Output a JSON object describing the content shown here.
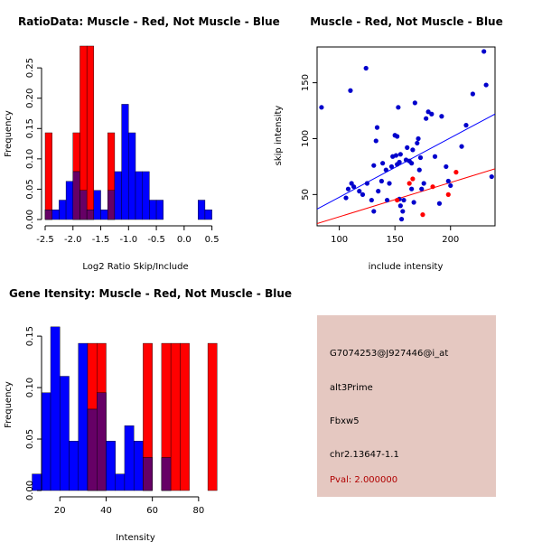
{
  "colors": {
    "red": "#ff0000",
    "blue": "#0000ff",
    "overlap": "#660066",
    "red_point": "#ff0000",
    "blue_point": "#0000cc",
    "info_bg": "#e5c8c1",
    "pval": "#b00000"
  },
  "chart_data": [
    {
      "id": "ratio-hist",
      "type": "bar",
      "title": "RatioData: Muscle - Red, Not Muscle - Blue",
      "xlabel": "Log2 Ratio Skip/Include",
      "ylabel": "Frequency",
      "xlim": [
        -2.5,
        0.75
      ],
      "ylim": [
        0,
        0.28
      ],
      "xticks": [
        "-2.5",
        "-2.0",
        "-1.5",
        "-1.0",
        "-0.5",
        "0.0",
        "0.5"
      ],
      "xtick_values": [
        -2.5,
        -2.0,
        -1.5,
        -1.0,
        -0.5,
        0.0,
        0.5
      ],
      "yticks": [
        "0.00",
        "0.05",
        "0.10",
        "0.15",
        "0.20",
        "0.25"
      ],
      "ytick_values": [
        0,
        0.05,
        0.1,
        0.15,
        0.2,
        0.25
      ],
      "bin_width": 0.125,
      "bin_starts": [
        -2.5,
        -2.375,
        -2.25,
        -2.125,
        -2.0,
        -1.875,
        -1.75,
        -1.625,
        -1.5,
        -1.375,
        -1.25,
        -1.125,
        -1.0,
        -0.875,
        -0.75,
        -0.625,
        -0.5,
        -0.375,
        -0.25,
        -0.125,
        0.0,
        0.125,
        0.25,
        0.375,
        0.5,
        0.625
      ],
      "series": [
        {
          "name": "Muscle",
          "color": "red",
          "values": [
            0.143,
            0,
            0,
            0,
            0.143,
            0.286,
            0.286,
            0,
            0,
            0.143,
            0,
            0,
            0,
            0,
            0,
            0,
            0,
            0,
            0,
            0,
            0,
            0,
            0,
            0,
            0,
            0
          ]
        },
        {
          "name": "Not Muscle",
          "color": "blue",
          "values": [
            0.016,
            0.016,
            0.032,
            0.063,
            0.079,
            0.048,
            0.016,
            0.048,
            0.016,
            0.048,
            0.079,
            0.19,
            0.143,
            0.079,
            0.079,
            0.032,
            0.032,
            0,
            0,
            0,
            0,
            0,
            0.032,
            0.016,
            0,
            0
          ]
        }
      ]
    },
    {
      "id": "scatter",
      "type": "scatter",
      "title": "Muscle - Red, Not Muscle - Blue",
      "xlabel": "include intensity",
      "ylabel": "skip intensity",
      "xlim": [
        80,
        240
      ],
      "ylim": [
        22,
        182
      ],
      "xticks": [
        "100",
        "150",
        "200"
      ],
      "xtick_values": [
        100,
        150,
        200
      ],
      "yticks": [
        "50",
        "100",
        "150"
      ],
      "ytick_values": [
        50,
        100,
        150
      ],
      "series": [
        {
          "name": "Not Muscle",
          "color": "blue_point",
          "points": [
            [
              84,
              128
            ],
            [
              110,
              143
            ],
            [
              124,
              163
            ],
            [
              106,
              47
            ],
            [
              108,
              55
            ],
            [
              111,
              60
            ],
            [
              113,
              57
            ],
            [
              118,
              53
            ],
            [
              121,
              50
            ],
            [
              125,
              60
            ],
            [
              129,
              45
            ],
            [
              131,
              35
            ],
            [
              131,
              76
            ],
            [
              133,
              98
            ],
            [
              134,
              110
            ],
            [
              135,
              53
            ],
            [
              138,
              62
            ],
            [
              139,
              78
            ],
            [
              142,
              72
            ],
            [
              143,
              45
            ],
            [
              145,
              60
            ],
            [
              147,
              75
            ],
            [
              148,
              84
            ],
            [
              150,
              103
            ],
            [
              151,
              85
            ],
            [
              152,
              102
            ],
            [
              153,
              128
            ],
            [
              152,
              77
            ],
            [
              154,
              79
            ],
            [
              155,
              86
            ],
            [
              154,
              46
            ],
            [
              155,
              40
            ],
            [
              156,
              28
            ],
            [
              157,
              35
            ],
            [
              158,
              45
            ],
            [
              160,
              81
            ],
            [
              161,
              92
            ],
            [
              163,
              80
            ],
            [
              165,
              78
            ],
            [
              165,
              55
            ],
            [
              166,
              90
            ],
            [
              167,
              43
            ],
            [
              168,
              132
            ],
            [
              170,
              96
            ],
            [
              171,
              100
            ],
            [
              172,
              72
            ],
            [
              173,
              83
            ],
            [
              174,
              55
            ],
            [
              176,
              60
            ],
            [
              178,
              118
            ],
            [
              180,
              124
            ],
            [
              183,
              122
            ],
            [
              186,
              84
            ],
            [
              190,
              42
            ],
            [
              192,
              120
            ],
            [
              196,
              75
            ],
            [
              198,
              62
            ],
            [
              200,
              58
            ],
            [
              210,
              93
            ],
            [
              214,
              112
            ],
            [
              220,
              140
            ],
            [
              232,
              148
            ],
            [
              237,
              66
            ],
            [
              230,
              178
            ]
          ]
        },
        {
          "name": "Muscle",
          "color": "red_point",
          "points": [
            [
              152,
              45
            ],
            [
              166,
              64
            ],
            [
              175,
              32
            ],
            [
              184,
              57
            ],
            [
              198,
              50
            ],
            [
              205,
              70
            ],
            [
              163,
              60
            ]
          ]
        }
      ],
      "fit_lines": [
        {
          "name": "Not Muscle fit",
          "color": "blue",
          "x": [
            80,
            240
          ],
          "y": [
            37,
            122
          ]
        },
        {
          "name": "Muscle fit",
          "color": "red",
          "x": [
            80,
            240
          ],
          "y": [
            24,
            73
          ]
        }
      ]
    },
    {
      "id": "intensity-hist",
      "type": "bar",
      "title": "Gene Itensity: Muscle - Red, Not Muscle - Blue",
      "xlabel": "Intensity",
      "ylabel": "Frequency",
      "xlim": [
        7,
        91
      ],
      "ylim": [
        0,
        0.165
      ],
      "xticks": [
        "20",
        "40",
        "60",
        "80"
      ],
      "xtick_values": [
        20,
        40,
        60,
        80
      ],
      "yticks": [
        "0.00",
        "0.05",
        "0.10",
        "0.15"
      ],
      "ytick_values": [
        0,
        0.05,
        0.1,
        0.15
      ],
      "bin_width": 4,
      "bin_starts": [
        8,
        12,
        16,
        20,
        24,
        28,
        32,
        36,
        40,
        44,
        48,
        52,
        56,
        60,
        64,
        68,
        72,
        76,
        80,
        84,
        88
      ],
      "series": [
        {
          "name": "Muscle",
          "color": "red",
          "values": [
            0,
            0,
            0,
            0,
            0,
            0,
            0.143,
            0.143,
            0,
            0,
            0,
            0,
            0.143,
            0,
            0.143,
            0.143,
            0.143,
            0,
            0,
            0.143,
            0
          ]
        },
        {
          "name": "Not Muscle",
          "color": "blue",
          "values": [
            0.016,
            0.095,
            0.159,
            0.111,
            0.048,
            0.143,
            0.079,
            0.095,
            0.048,
            0.016,
            0.063,
            0.048,
            0.032,
            0,
            0.032,
            0,
            0,
            0,
            0,
            0,
            0
          ]
        }
      ]
    }
  ],
  "info": {
    "probe_id": "G7074253@J927446@i_at",
    "event_type": "alt3Prime",
    "gene": "Fbxw5",
    "location": "chr2.13647-1.1",
    "pval": "Pval: 2.000000"
  }
}
